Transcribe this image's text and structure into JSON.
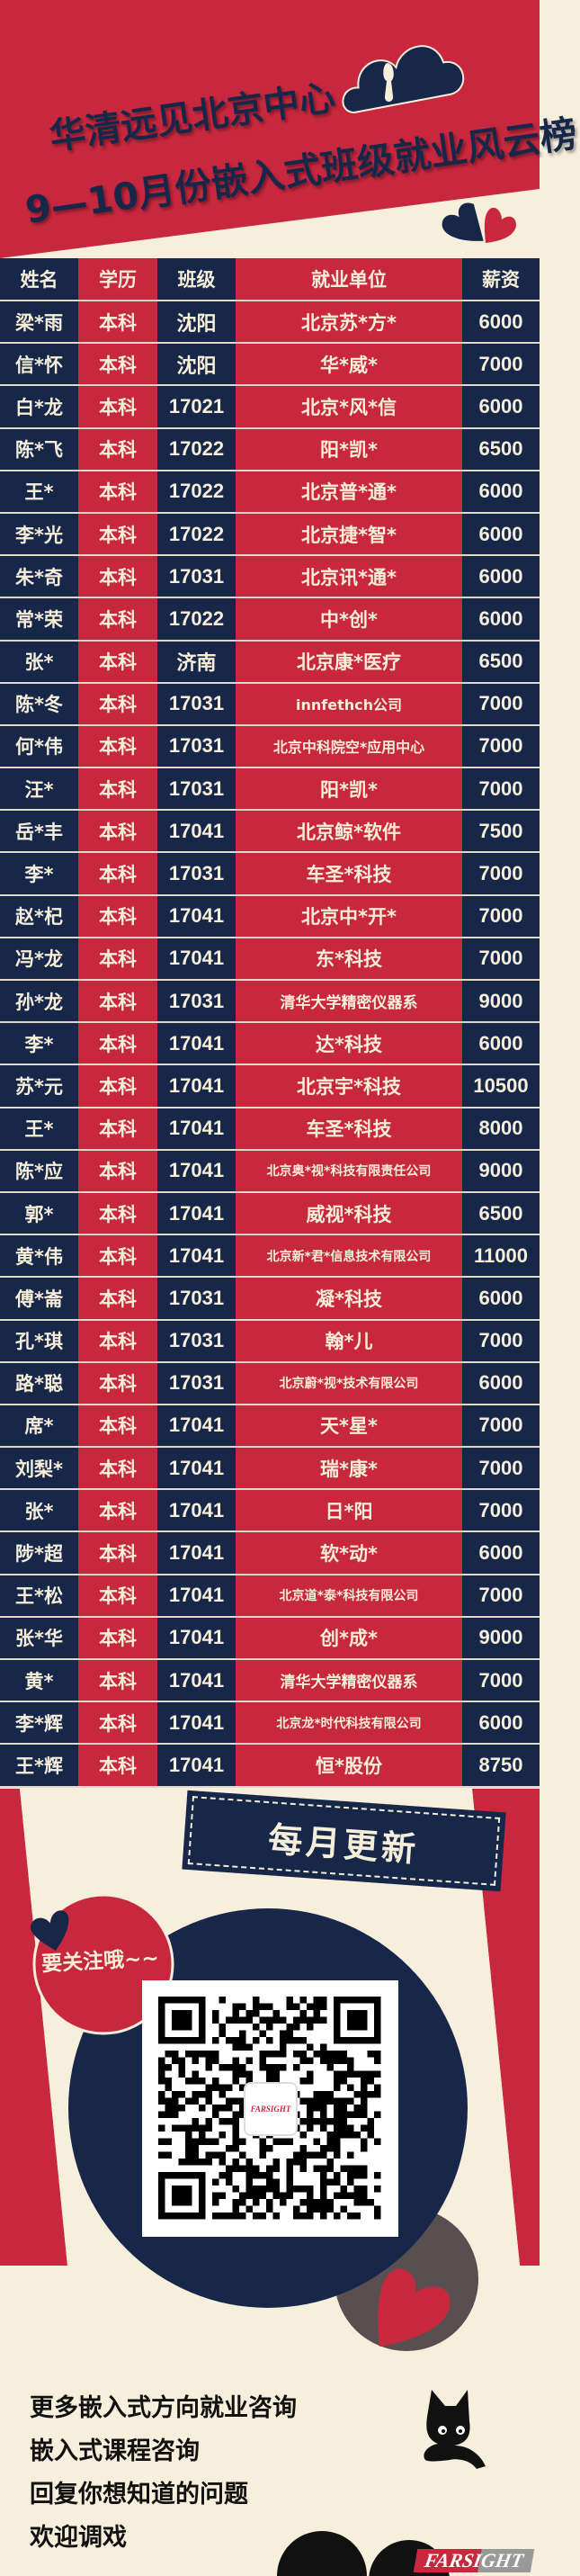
{
  "header": {
    "title_line1": "华清远见北京中心",
    "title_line2": "9—10月份嵌入式班级就业风云榜"
  },
  "colors": {
    "red": "#c8283e",
    "navy": "#16274a",
    "cream": "#f7eedc"
  },
  "table": {
    "columns": [
      "姓名",
      "学历",
      "班级",
      "就业单位",
      "薪资"
    ],
    "rows": [
      [
        "梁*雨",
        "本科",
        "沈阳",
        "北京苏*方*",
        "6000"
      ],
      [
        "信*怀",
        "本科",
        "沈阳",
        "华*威*",
        "7000"
      ],
      [
        "白*龙",
        "本科",
        "17021",
        "北京*风*信",
        "6000"
      ],
      [
        "陈*飞",
        "本科",
        "17022",
        "阳*凯*",
        "6500"
      ],
      [
        "王*",
        "本科",
        "17022",
        "北京普*通*",
        "6000"
      ],
      [
        "李*光",
        "本科",
        "17022",
        "北京捷*智*",
        "6000"
      ],
      [
        "朱*奇",
        "本科",
        "17031",
        "北京讯*通*",
        "6000"
      ],
      [
        "常*荣",
        "本科",
        "17022",
        "中*创*",
        "6000"
      ],
      [
        "张*",
        "本科",
        "济南",
        "北京康*医疗",
        "6500"
      ],
      [
        "陈*冬",
        "本科",
        "17031",
        "innfethch公司",
        "7000"
      ],
      [
        "何*伟",
        "本科",
        "17031",
        "北京中科院空*应用中心",
        "7000"
      ],
      [
        "汪*",
        "本科",
        "17031",
        "阳*凯*",
        "7000"
      ],
      [
        "岳*丰",
        "本科",
        "17041",
        "北京鲸*软件",
        "7500"
      ],
      [
        "李*",
        "本科",
        "17031",
        "车圣*科技",
        "7000"
      ],
      [
        "赵*杞",
        "本科",
        "17041",
        "北京中*开*",
        "7000"
      ],
      [
        "冯*龙",
        "本科",
        "17041",
        "东*科技",
        "7000"
      ],
      [
        "孙*龙",
        "本科",
        "17031",
        "清华大学精密仪器系",
        "9000"
      ],
      [
        "李*",
        "本科",
        "17041",
        "达*科技",
        "6000"
      ],
      [
        "苏*元",
        "本科",
        "17041",
        "北京宇*科技",
        "10500"
      ],
      [
        "王*",
        "本科",
        "17041",
        "车圣*科技",
        "8000"
      ],
      [
        "陈*应",
        "本科",
        "17041",
        "北京奥*视*科技有限责任公司",
        "9000"
      ],
      [
        "郭*",
        "本科",
        "17041",
        "威视*科技",
        "6500"
      ],
      [
        "黄*伟",
        "本科",
        "17041",
        "北京新*君*信息技术有限公司",
        "11000"
      ],
      [
        "傅*崙",
        "本科",
        "17031",
        "凝*科技",
        "6000"
      ],
      [
        "孔*琪",
        "本科",
        "17031",
        "翰*儿",
        "7000"
      ],
      [
        "路*聪",
        "本科",
        "17031",
        "北京蔚*视*技术有限公司",
        "6000"
      ],
      [
        "席*",
        "本科",
        "17041",
        "天*星*",
        "7000"
      ],
      [
        "刘梨*",
        "本科",
        "17041",
        "瑞*康*",
        "7000"
      ],
      [
        "张*",
        "本科",
        "17041",
        "日*阳",
        "7000"
      ],
      [
        "陟*超",
        "本科",
        "17041",
        "软*动*",
        "6000"
      ],
      [
        "王*松",
        "本科",
        "17041",
        "北京道*泰*科技有限公司",
        "7000"
      ],
      [
        "张*华",
        "本科",
        "17041",
        "创*成*",
        "9000"
      ],
      [
        "黄*",
        "本科",
        "17041",
        "清华大学精密仪器系",
        "7000"
      ],
      [
        "李*辉",
        "本科",
        "17041",
        "北京龙*时代科技有限公司",
        "6000"
      ],
      [
        "王*辉",
        "本科",
        "17041",
        "恒*股份",
        "8750"
      ]
    ]
  },
  "promo": {
    "banner": "每月更新",
    "follow": "要关注哦~~",
    "lines": [
      "更多嵌入式方向就业咨询",
      "嵌入式课程咨询",
      "回复你想知道的问题",
      "欢迎调戏"
    ],
    "logo_text": "FARSIGHT",
    "qr_logo_text": "FARSIGHT"
  }
}
